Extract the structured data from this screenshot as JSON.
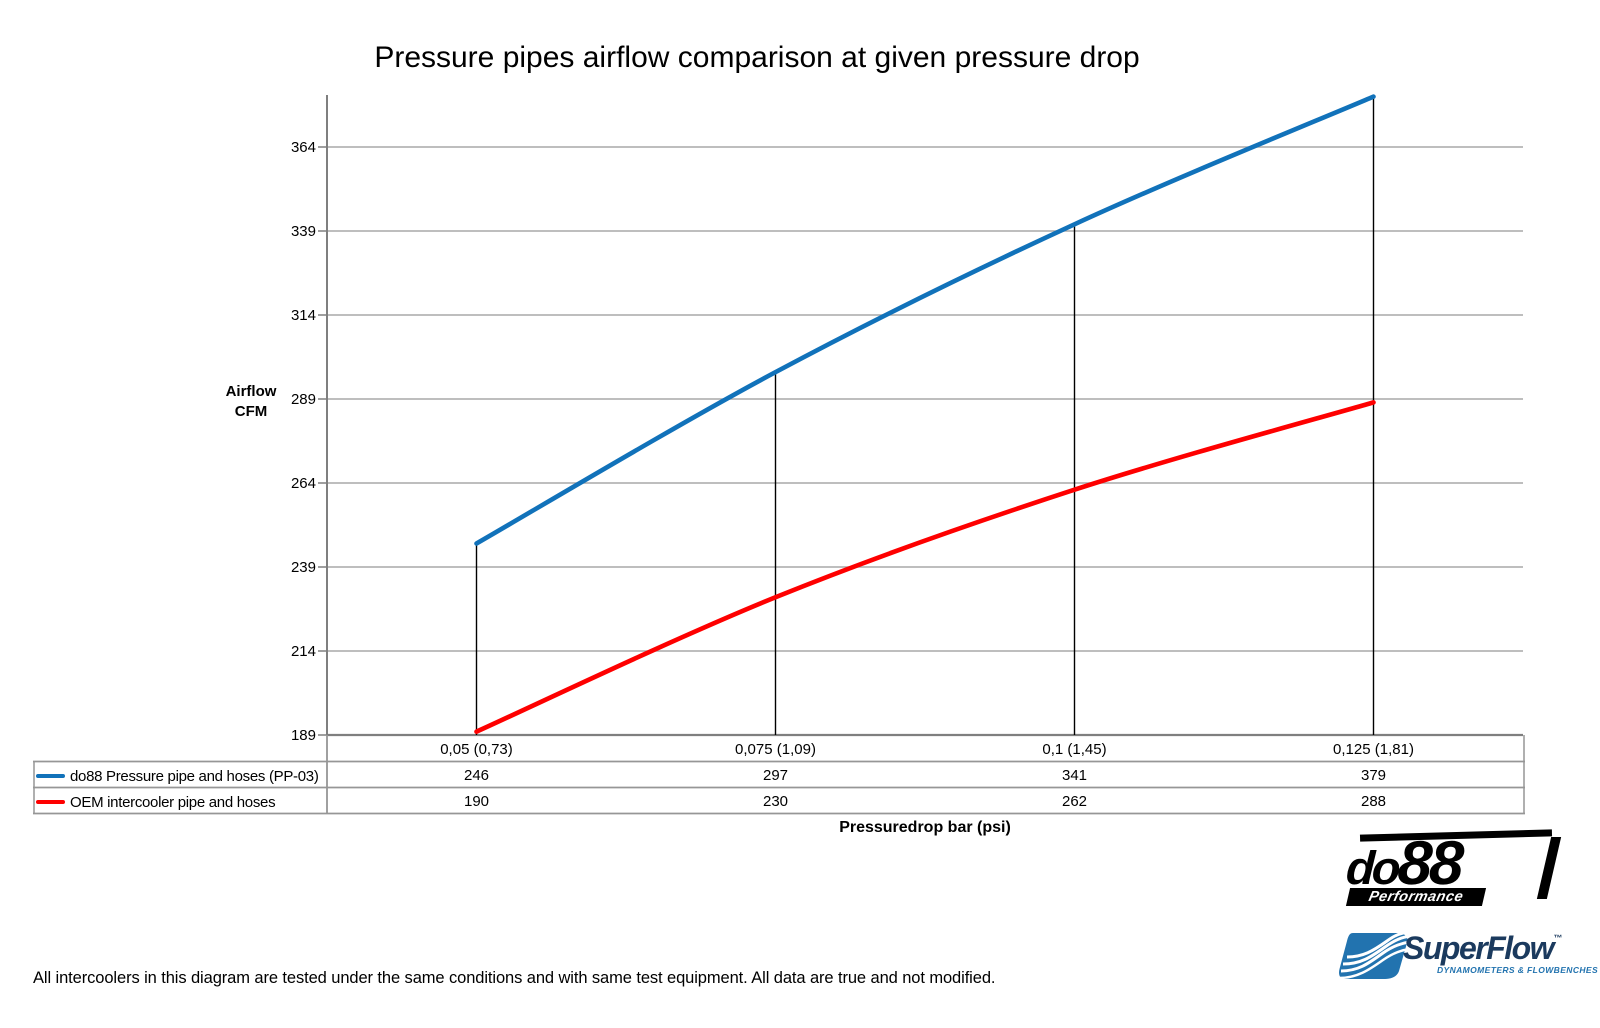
{
  "chart_data": {
    "type": "line",
    "title": "Pressure pipes airflow comparison at given pressure drop",
    "categories": [
      "0,05 (0,73)",
      "0,075 (1,09)",
      "0,1 (1,45)",
      "0,125 (1,81)"
    ],
    "series": [
      {
        "name": "do88 Pressure pipe and hoses (PP-03)",
        "color": "#1172BA",
        "values": [
          246,
          297,
          341,
          379
        ]
      },
      {
        "name": "OEM intercooler pipe and hoses",
        "color": "#FE0000",
        "values": [
          190,
          230,
          262,
          288
        ]
      }
    ],
    "yticks": [
      364,
      339,
      314,
      289,
      264,
      239,
      214,
      189
    ],
    "ylim": [
      189,
      379.5
    ],
    "ylabel": "Airflow CFM",
    "ylabel_lines": [
      "Airflow",
      "CFM"
    ],
    "xlabel": "Pressuredrop bar (psi)",
    "grid": true,
    "legend_position": "table-left",
    "dropline_series": "do88 Pressure pipe and hoses (PP-03)"
  },
  "footer": {
    "note": "All intercoolers in this diagram are tested under the same conditions and with same test equipment. All data are true and not modified."
  },
  "logos": {
    "do88": {
      "wordmark_do": "do",
      "wordmark_88": "88",
      "tagline": "Performance"
    },
    "superflow": {
      "wordmark": "SuperFlow",
      "trademark": "™",
      "tagline": "DYNAMOMETERS & FLOWBENCHES"
    }
  },
  "colors": {
    "series_blue": "#1172BA",
    "series_red": "#FE0000",
    "gridline": "#A8A8A8",
    "axis": "#7F7F7F",
    "table_border": "#969696",
    "dropline": "#000000",
    "logo_black": "#000000",
    "superflow_navy": "#1B3A5E",
    "superflow_blue": "#2273AF"
  }
}
